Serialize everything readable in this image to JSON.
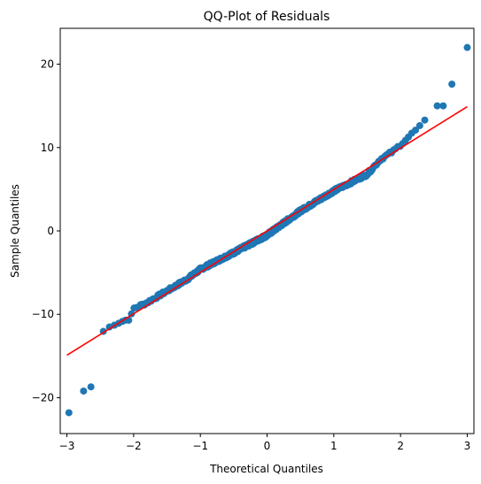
{
  "chart_data": {
    "type": "scatter",
    "title": "QQ-Plot of Residuals",
    "xlabel": "Theoretical Quantiles",
    "ylabel": "Sample Quantiles",
    "xlim": [
      -3.1,
      3.1
    ],
    "ylim": [
      -24.3,
      24.3
    ],
    "xticks": [
      -3,
      -2,
      -1,
      0,
      1,
      2,
      3
    ],
    "yticks": [
      -20,
      -10,
      0,
      10,
      20
    ],
    "grid": false,
    "colors": {
      "points": "#1f77b4",
      "line": "#ff0000"
    },
    "reference_line": {
      "x": [
        -3.0,
        3.0
      ],
      "y": [
        -14.9,
        14.9
      ]
    },
    "n_points": 500,
    "outliers_low": [
      [
        -2.97,
        -21.8
      ],
      [
        -2.75,
        -19.2
      ],
      [
        -2.64,
        -18.7
      ]
    ],
    "outliers_high": [
      [
        2.55,
        15.0
      ],
      [
        2.64,
        15.0
      ],
      [
        2.77,
        17.6
      ],
      [
        3.0,
        22.0
      ]
    ],
    "body_curve": [
      [
        -2.55,
        -13.0
      ],
      [
        -2.45,
        -12.0
      ],
      [
        -2.3,
        -11.2
      ],
      [
        -2.05,
        -10.5
      ],
      [
        -2.0,
        -9.3
      ],
      [
        -1.8,
        -8.6
      ],
      [
        -1.5,
        -7.2
      ],
      [
        -1.2,
        -5.8
      ],
      [
        -1.0,
        -4.6
      ],
      [
        -0.5,
        -2.6
      ],
      [
        0.0,
        -0.5
      ],
      [
        0.5,
        2.4
      ],
      [
        1.0,
        4.8
      ],
      [
        1.5,
        6.8
      ],
      [
        1.7,
        8.6
      ],
      [
        1.9,
        9.6
      ],
      [
        2.15,
        11.5
      ],
      [
        2.35,
        13.0
      ],
      [
        2.45,
        14.0
      ]
    ]
  }
}
